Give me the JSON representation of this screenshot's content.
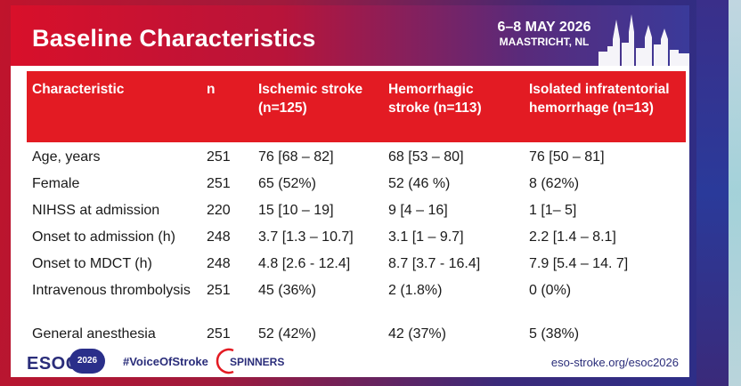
{
  "header": {
    "title": "Baseline Characteristics",
    "event_date": "6–8 MAY 2026",
    "event_place": "MAASTRICHT, NL"
  },
  "table": {
    "columns": [
      "Characteristic",
      "n",
      "Ischemic stroke (n=125)",
      "Hemorrhagic stroke (n=113)",
      "Isolated infratentorial hemorrhage (n=13)"
    ],
    "rows": [
      [
        "Age, years",
        "251",
        "76 [68 – 82]",
        "68 [53 – 80]",
        "76 [50 – 81]"
      ],
      [
        "Female",
        "251",
        "65 (52%)",
        "52 (46 %)",
        "8 (62%)"
      ],
      [
        "NIHSS at admission",
        "220",
        "15 [10 – 19]",
        "9 [4 – 16]",
        "1 [1– 5]"
      ],
      [
        "Onset to admission (h)",
        "248",
        "3.7 [1.3 – 10.7]",
        "3.1 [1 – 9.7]",
        "2.2 [1.4 – 8.1]"
      ],
      [
        "Onset to MDCT (h)",
        "248",
        "4.8 [2.6 - 12.4]",
        "8.7 [3.7 - 16.4]",
        "7.9 [5.4 – 14. 7]"
      ],
      [
        "Intravenous thrombolysis",
        "251",
        "45 (36%)",
        "2 (1.8%)",
        "0 (0%)"
      ],
      [
        "General anesthesia",
        "251",
        "52 (42%)",
        "42 (37%)",
        "5 (38%)"
      ]
    ]
  },
  "footer": {
    "logo_text": "ESOC",
    "logo_year": "2026",
    "hashtag": "#VoiceOfStroke",
    "sponsor": "SPINNERS",
    "url": "eso-stroke.org/esoc2026"
  },
  "colors": {
    "accent_red": "#e31b23",
    "brand_navy": "#2a2d7a"
  },
  "icons": {
    "skyline": "maastricht-skyline-icon",
    "sponsor": "spinners-logo-icon"
  }
}
